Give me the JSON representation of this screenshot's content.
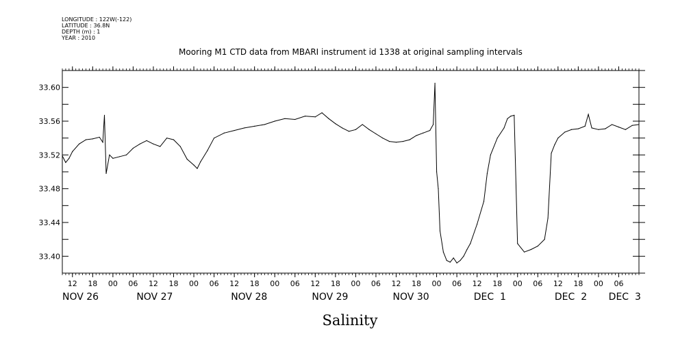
{
  "header": {
    "meta_lines": [
      "LONGITUDE : 122W(-122)",
      "LATITUDE : 36.8N",
      "DEPTH (m) : 1",
      "YEAR : 2010"
    ],
    "title": "Mooring M1 CTD data from MBARI instrument id 1338 at original sampling intervals"
  },
  "chart_data": {
    "type": "line",
    "title": "Mooring M1 CTD data from MBARI instrument id 1338 at original sampling intervals",
    "xlabel": "Salinity",
    "ylabel": "",
    "xlim": [
      "2010-11-26T09:00",
      "2010-12-03T12:00"
    ],
    "ylim": [
      33.38,
      33.62
    ],
    "y_ticks": [
      "33.40",
      "33.44",
      "33.48",
      "33.52",
      "33.56",
      "33.60"
    ],
    "x_hour_ticks": [
      {
        "t": "2010-11-26T12:00",
        "label": "12"
      },
      {
        "t": "2010-11-26T18:00",
        "label": "18"
      },
      {
        "t": "2010-11-27T00:00",
        "label": "00"
      },
      {
        "t": "2010-11-27T06:00",
        "label": "06"
      },
      {
        "t": "2010-11-27T12:00",
        "label": "12"
      },
      {
        "t": "2010-11-27T18:00",
        "label": "18"
      },
      {
        "t": "2010-11-28T00:00",
        "label": "00"
      },
      {
        "t": "2010-11-28T06:00",
        "label": "06"
      },
      {
        "t": "2010-11-28T12:00",
        "label": "12"
      },
      {
        "t": "2010-11-28T18:00",
        "label": "18"
      },
      {
        "t": "2010-11-29T00:00",
        "label": "00"
      },
      {
        "t": "2010-11-29T06:00",
        "label": "06"
      },
      {
        "t": "2010-11-29T12:00",
        "label": "12"
      },
      {
        "t": "2010-11-29T18:00",
        "label": "18"
      },
      {
        "t": "2010-11-30T00:00",
        "label": "00"
      },
      {
        "t": "2010-11-30T06:00",
        "label": "06"
      },
      {
        "t": "2010-11-30T12:00",
        "label": "12"
      },
      {
        "t": "2010-11-30T18:00",
        "label": "18"
      },
      {
        "t": "2010-12-01T00:00",
        "label": "00"
      },
      {
        "t": "2010-12-01T06:00",
        "label": "06"
      },
      {
        "t": "2010-12-01T12:00",
        "label": "12"
      },
      {
        "t": "2010-12-01T18:00",
        "label": "18"
      },
      {
        "t": "2010-12-02T00:00",
        "label": "00"
      },
      {
        "t": "2010-12-02T06:00",
        "label": "06"
      },
      {
        "t": "2010-12-02T12:00",
        "label": "12"
      },
      {
        "t": "2010-12-02T18:00",
        "label": "18"
      },
      {
        "t": "2010-12-03T00:00",
        "label": "00"
      },
      {
        "t": "2010-12-03T06:00",
        "label": "06"
      }
    ],
    "x_date_labels": [
      {
        "t": "2010-11-26T09:00",
        "label": "NOV 26"
      },
      {
        "t": "2010-11-27T07:00",
        "label": "NOV 27"
      },
      {
        "t": "2010-11-28T11:00",
        "label": "NOV 28"
      },
      {
        "t": "2010-11-29T11:00",
        "label": "NOV 29"
      },
      {
        "t": "2010-11-30T11:00",
        "label": "NOV 30"
      },
      {
        "t": "2010-12-01T11:00",
        "label": "DEC  1"
      },
      {
        "t": "2010-12-02T11:00",
        "label": "DEC  2"
      },
      {
        "t": "2010-12-03T03:00",
        "label": "DEC  3"
      }
    ],
    "series": [
      {
        "x": [
          "2010-11-26T09:00",
          "2010-11-26T10:00",
          "2010-11-26T11:00",
          "2010-11-26T12:00",
          "2010-11-26T14:00",
          "2010-11-26T16:00",
          "2010-11-26T18:00",
          "2010-11-26T20:00",
          "2010-11-26T21:00",
          "2010-11-26T21:30",
          "2010-11-26T22:00",
          "2010-11-26T23:00",
          "2010-11-27T00:00",
          "2010-11-27T02:00",
          "2010-11-27T04:00",
          "2010-11-27T06:00",
          "2010-11-27T08:00",
          "2010-11-27T10:00",
          "2010-11-27T12:00",
          "2010-11-27T14:00",
          "2010-11-27T16:00",
          "2010-11-27T18:00",
          "2010-11-27T20:00",
          "2010-11-27T22:00",
          "2010-11-28T00:00",
          "2010-11-28T01:00",
          "2010-11-28T02:00",
          "2010-11-28T04:00",
          "2010-11-28T06:00",
          "2010-11-28T09:00",
          "2010-11-28T12:00",
          "2010-11-28T15:00",
          "2010-11-28T18:00",
          "2010-11-28T21:00",
          "2010-11-29T00:00",
          "2010-11-29T03:00",
          "2010-11-29T06:00",
          "2010-11-29T09:00",
          "2010-11-29T12:00",
          "2010-11-29T14:00",
          "2010-11-29T16:00",
          "2010-11-29T18:00",
          "2010-11-29T20:00",
          "2010-11-29T22:00",
          "2010-11-30T00:00",
          "2010-11-30T02:00",
          "2010-11-30T04:00",
          "2010-11-30T06:00",
          "2010-11-30T08:00",
          "2010-11-30T10:00",
          "2010-11-30T12:00",
          "2010-11-30T14:00",
          "2010-11-30T16:00",
          "2010-11-30T18:00",
          "2010-11-30T20:00",
          "2010-11-30T22:00",
          "2010-11-30T23:00",
          "2010-11-30T23:30",
          "2010-12-01T00:00",
          "2010-12-01T00:30",
          "2010-12-01T01:00",
          "2010-12-01T02:00",
          "2010-12-01T03:00",
          "2010-12-01T04:00",
          "2010-12-01T05:00",
          "2010-12-01T06:00",
          "2010-12-01T07:00",
          "2010-12-01T08:00",
          "2010-12-01T09:00",
          "2010-12-01T10:00",
          "2010-12-01T12:00",
          "2010-12-01T14:00",
          "2010-12-01T15:00",
          "2010-12-01T16:00",
          "2010-12-01T18:00",
          "2010-12-01T20:00",
          "2010-12-01T21:00",
          "2010-12-01T22:00",
          "2010-12-01T23:00",
          "2010-12-02T00:00",
          "2010-12-02T02:00",
          "2010-12-02T04:00",
          "2010-12-02T06:00",
          "2010-12-02T08:00",
          "2010-12-02T09:00",
          "2010-12-02T10:00",
          "2010-12-02T11:00",
          "2010-12-02T12:00",
          "2010-12-02T14:00",
          "2010-12-02T16:00",
          "2010-12-02T18:00",
          "2010-12-02T20:00",
          "2010-12-02T21:00",
          "2010-12-02T22:00",
          "2010-12-03T00:00",
          "2010-12-03T02:00",
          "2010-12-03T04:00",
          "2010-12-03T06:00",
          "2010-12-03T08:00",
          "2010-12-03T10:00",
          "2010-12-03T12:00"
        ],
        "y": [
          33.519,
          33.511,
          33.516,
          33.524,
          33.533,
          33.538,
          33.539,
          33.541,
          33.535,
          33.567,
          33.498,
          33.52,
          33.516,
          33.518,
          33.52,
          33.528,
          33.533,
          33.537,
          33.533,
          33.53,
          33.54,
          33.538,
          33.53,
          33.515,
          33.508,
          33.504,
          33.512,
          33.525,
          33.54,
          33.546,
          33.549,
          33.552,
          33.554,
          33.556,
          33.56,
          33.563,
          33.562,
          33.566,
          33.565,
          33.57,
          33.563,
          33.557,
          33.552,
          33.548,
          33.55,
          33.556,
          33.55,
          33.545,
          33.54,
          33.536,
          33.535,
          33.536,
          33.538,
          33.543,
          33.546,
          33.549,
          33.556,
          33.605,
          33.5,
          33.48,
          33.43,
          33.405,
          33.395,
          33.393,
          33.398,
          33.392,
          33.395,
          33.4,
          33.408,
          33.415,
          33.438,
          33.465,
          33.498,
          33.52,
          33.54,
          33.552,
          33.563,
          33.566,
          33.567,
          33.415,
          33.405,
          33.408,
          33.412,
          33.42,
          33.445,
          33.522,
          33.532,
          33.54,
          33.547,
          33.55,
          33.551,
          33.554,
          33.568,
          33.552,
          33.55,
          33.551,
          33.556,
          33.553,
          33.55,
          33.555,
          33.556
        ]
      }
    ]
  }
}
